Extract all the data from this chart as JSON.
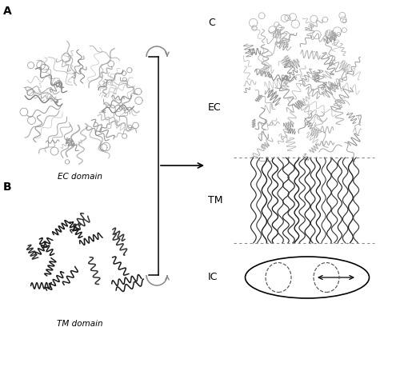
{
  "background_color": "#ffffff",
  "label_A": "A",
  "label_B": "B",
  "label_C": "C",
  "label_EC": "EC",
  "label_TM": "TM",
  "label_IC": "IC",
  "label_ec_domain": "EC domain",
  "label_tm_domain": "TM domain",
  "ec_color_light": "#aaaaaa",
  "ec_color_mid": "#888888",
  "tm_color_dark": "#222222",
  "tm_color_mid": "#444444",
  "arrow_color": "#888888",
  "line_color": "#000000",
  "dotted_color": "#888888"
}
